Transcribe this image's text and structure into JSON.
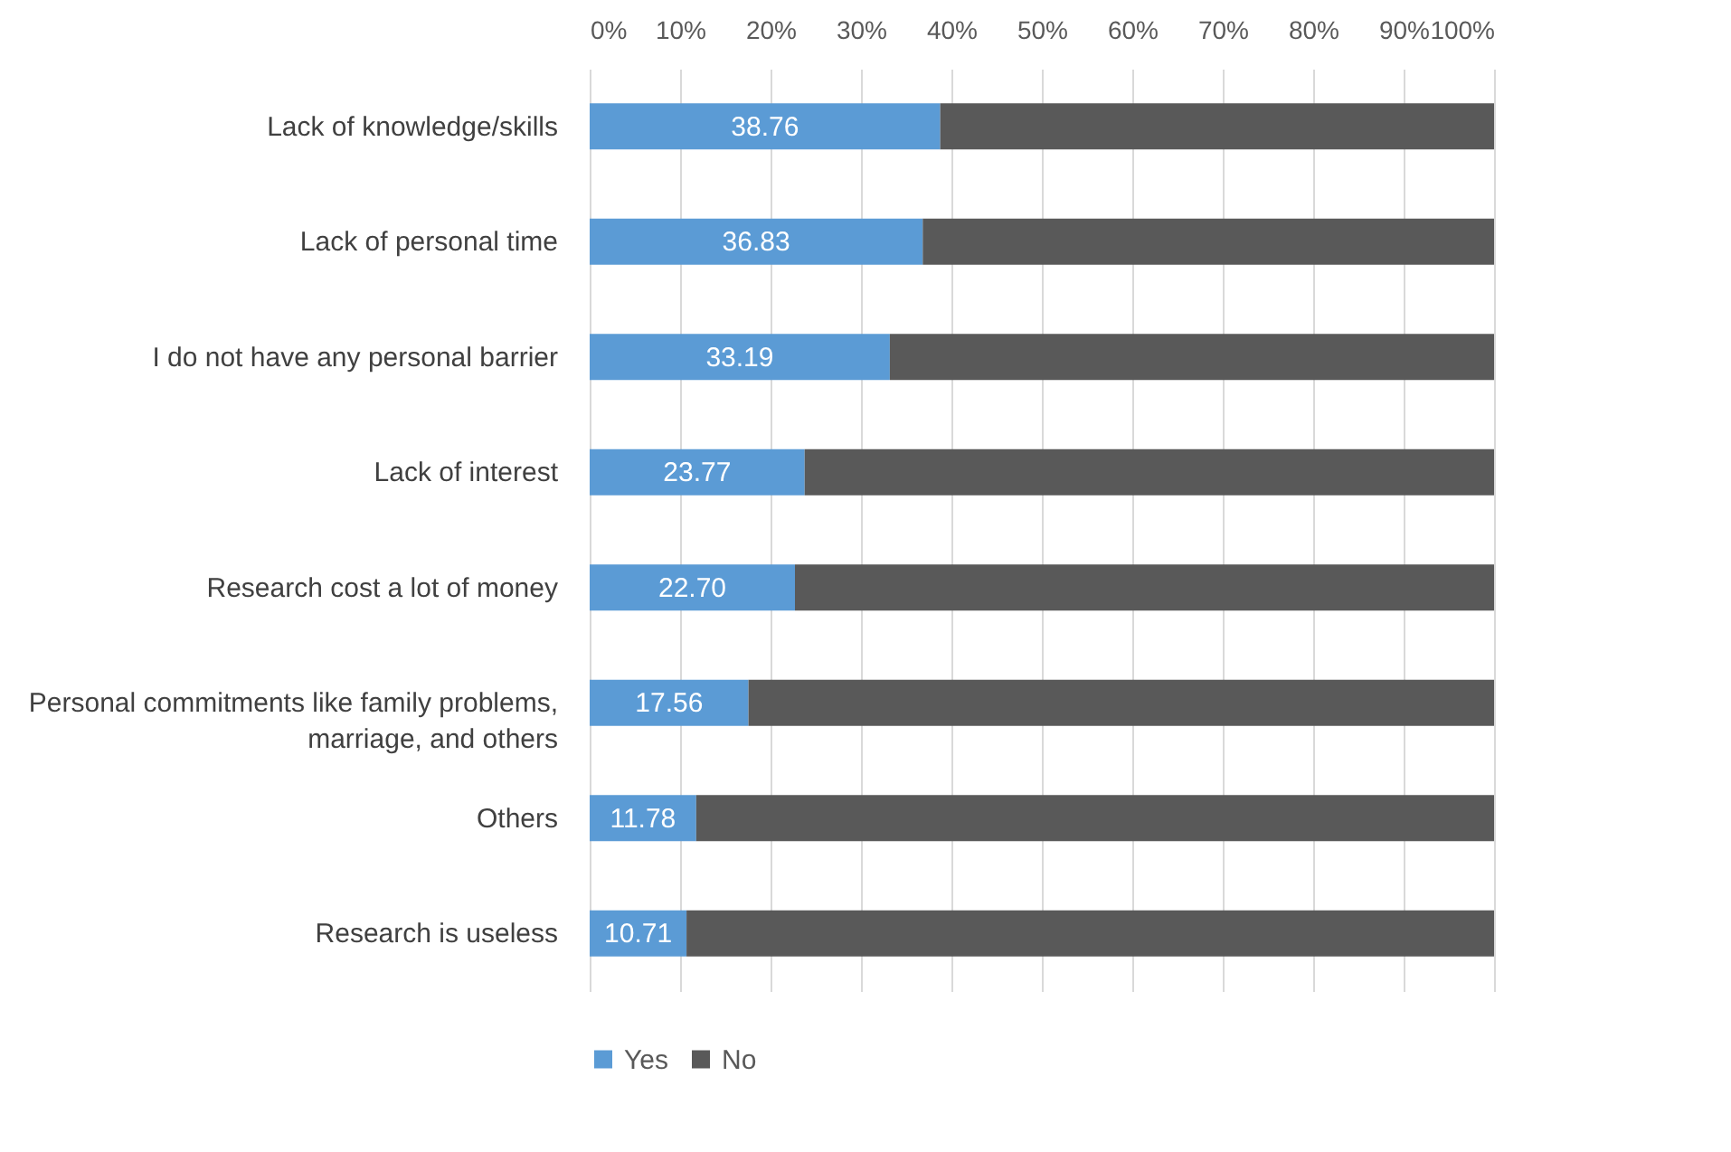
{
  "chart_data": {
    "type": "bar",
    "orientation": "horizontal",
    "stacked": true,
    "categories": [
      "Lack of knowledge/skills",
      "Lack of personal time",
      "I do not have any personal barrier",
      "Lack of interest",
      "Research cost a lot of money",
      "Personal commitments like family problems, marriage, and others",
      "Others",
      "Research is useless"
    ],
    "series": [
      {
        "name": "Yes",
        "color": "#5b9bd5",
        "values": [
          38.76,
          36.83,
          33.19,
          23.77,
          22.7,
          17.56,
          11.78,
          10.71
        ],
        "value_labels": [
          "38.76",
          "36.83",
          "33.19",
          "23.77",
          "22.70",
          "17.56",
          "11.78",
          "10.71"
        ]
      },
      {
        "name": "No",
        "color": "#595959",
        "values": [
          61.24,
          63.17,
          66.81,
          76.23,
          77.3,
          82.44,
          88.22,
          89.29
        ]
      }
    ],
    "xlim": [
      0,
      100
    ],
    "xticks": [
      {
        "value": 0,
        "label": "0%"
      },
      {
        "value": 10,
        "label": "10%"
      },
      {
        "value": 20,
        "label": "20%"
      },
      {
        "value": 30,
        "label": "30%"
      },
      {
        "value": 40,
        "label": "40%"
      },
      {
        "value": 50,
        "label": "50%"
      },
      {
        "value": 60,
        "label": "60%"
      },
      {
        "value": 70,
        "label": "70%"
      },
      {
        "value": 80,
        "label": "80%"
      },
      {
        "value": 90,
        "label": "90%"
      },
      {
        "value": 100,
        "label": "100%"
      }
    ],
    "grid": "x",
    "legend": "bottom"
  }
}
